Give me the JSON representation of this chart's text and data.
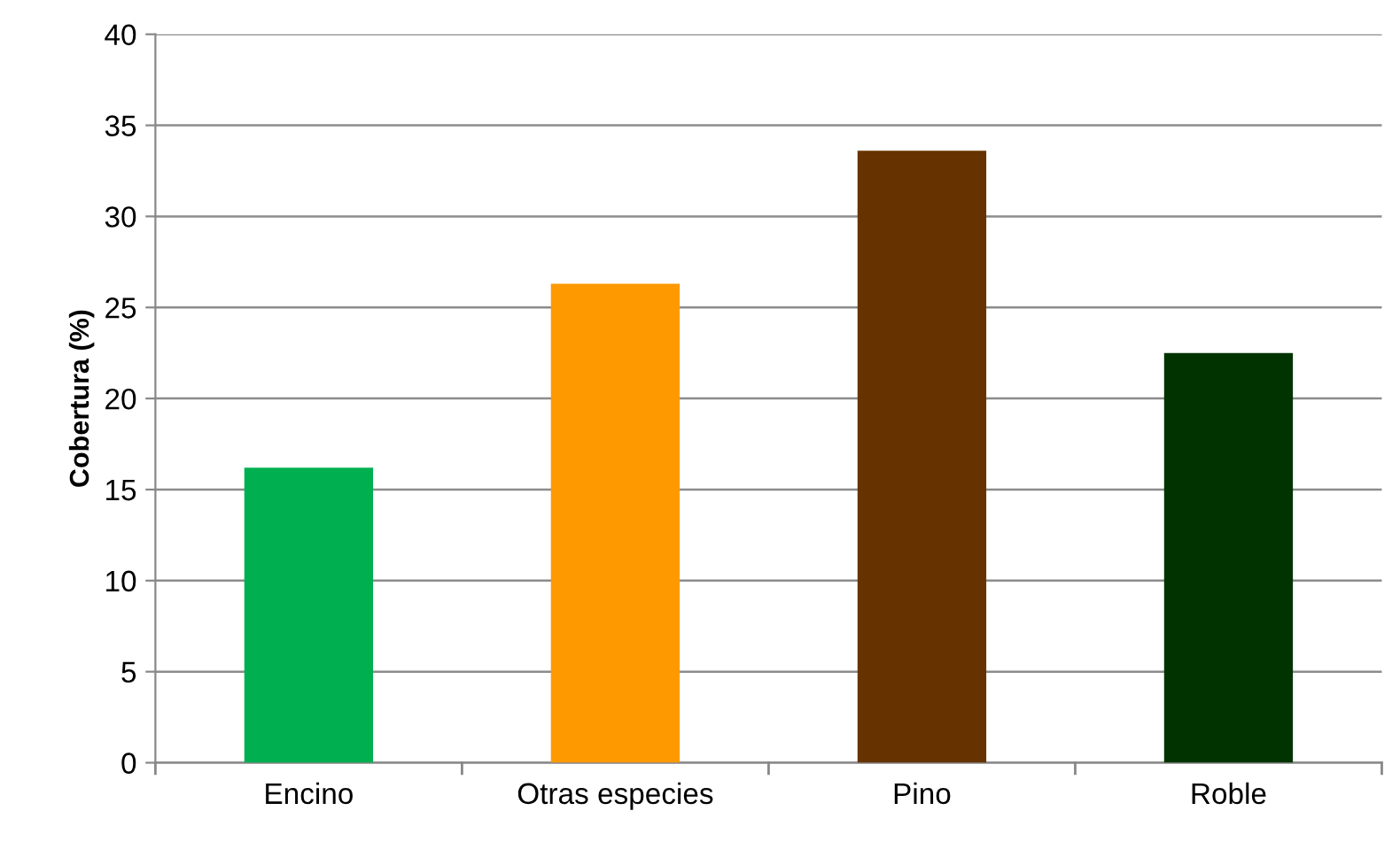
{
  "chart_data": {
    "type": "bar",
    "ylabel": "Cobertura (%)",
    "categories": [
      "Encino",
      "Otras especies",
      "Pino",
      "Roble"
    ],
    "values": [
      16.2,
      26.3,
      33.6,
      22.5
    ],
    "colors": [
      "#00b050",
      "#ff9900",
      "#663300",
      "#003300"
    ],
    "ylim": [
      0,
      40
    ],
    "yticks": [
      0,
      5,
      10,
      15,
      20,
      25,
      30,
      35,
      40
    ],
    "grid": "y",
    "legend": false
  }
}
